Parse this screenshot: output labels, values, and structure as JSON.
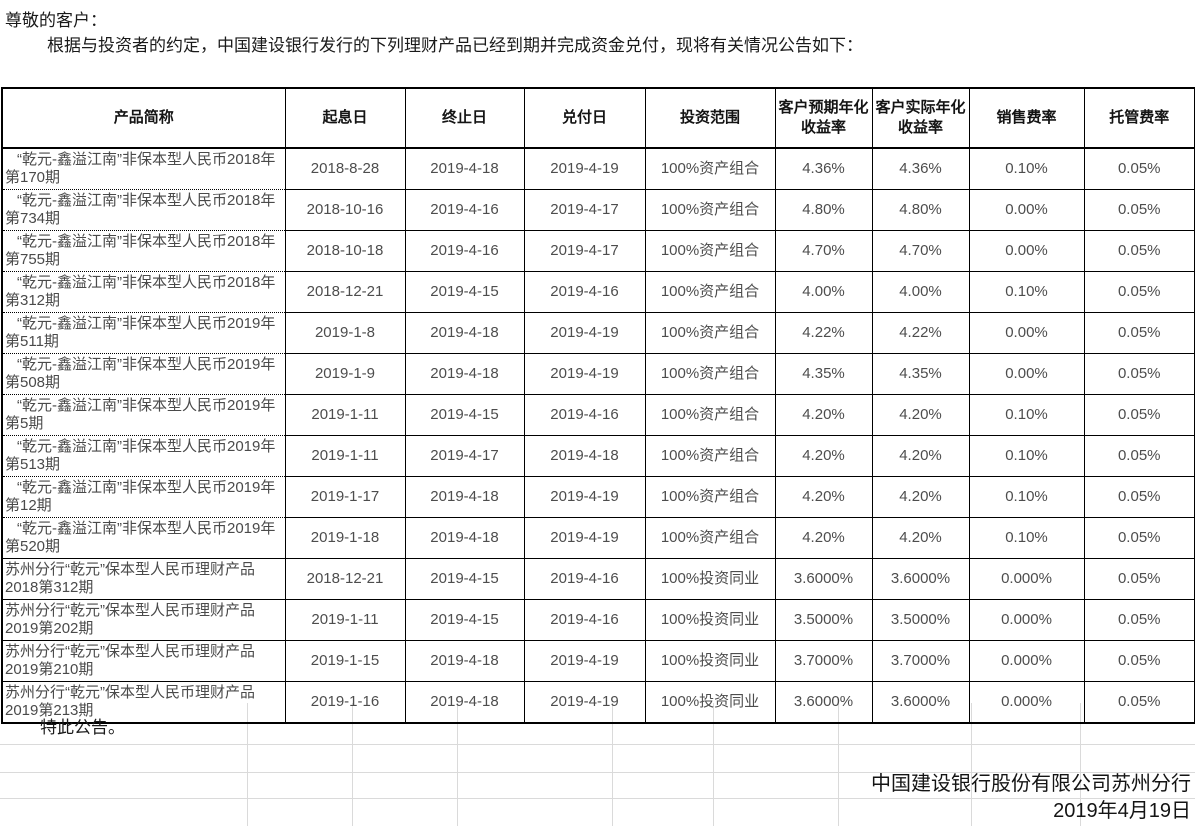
{
  "page": {
    "greeting": "尊敬的客户：",
    "intro": "根据与投资者的约定，中国建设银行发行的下列理财产品已经到期并完成资金兑付，现将有关情况公告如下：",
    "closing": "特此公告。",
    "signature": "中国建设银行股份有限公司苏州分行",
    "date": "2019年4月19日"
  },
  "table": {
    "headers": [
      "产品简称",
      "起息日",
      "终止日",
      "兑付日",
      "投资范围",
      "客户预期年化收益率",
      "客户实际年化收益率",
      "销售费率",
      "托管费率"
    ],
    "rows": [
      {
        "name": "“乾元-鑫溢江南”非保本型人民币2018年第170期",
        "value_date": "2018-8-28",
        "end_date": "2019-4-18",
        "payment_date": "2019-4-19",
        "scope": "100%资产组合",
        "expected_yield": "4.36%",
        "actual_yield": "4.36%",
        "sales_fee": "0.10%",
        "custody_fee": "0.05%"
      },
      {
        "name": "“乾元-鑫溢江南”非保本型人民币2018年第734期",
        "value_date": "2018-10-16",
        "end_date": "2019-4-16",
        "payment_date": "2019-4-17",
        "scope": "100%资产组合",
        "expected_yield": "4.80%",
        "actual_yield": "4.80%",
        "sales_fee": "0.00%",
        "custody_fee": "0.05%"
      },
      {
        "name": "“乾元-鑫溢江南”非保本型人民币2018年第755期",
        "value_date": "2018-10-18",
        "end_date": "2019-4-16",
        "payment_date": "2019-4-17",
        "scope": "100%资产组合",
        "expected_yield": "4.70%",
        "actual_yield": "4.70%",
        "sales_fee": "0.00%",
        "custody_fee": "0.05%"
      },
      {
        "name": "“乾元-鑫溢江南”非保本型人民币2018年第312期",
        "value_date": "2018-12-21",
        "end_date": "2019-4-15",
        "payment_date": "2019-4-16",
        "scope": "100%资产组合",
        "expected_yield": "4.00%",
        "actual_yield": "4.00%",
        "sales_fee": "0.10%",
        "custody_fee": "0.05%"
      },
      {
        "name": "“乾元-鑫溢江南”非保本型人民币2019年第511期",
        "value_date": "2019-1-8",
        "end_date": "2019-4-18",
        "payment_date": "2019-4-19",
        "scope": "100%资产组合",
        "expected_yield": "4.22%",
        "actual_yield": "4.22%",
        "sales_fee": "0.00%",
        "custody_fee": "0.05%"
      },
      {
        "name": "“乾元-鑫溢江南”非保本型人民币2019年第508期",
        "value_date": "2019-1-9",
        "end_date": "2019-4-18",
        "payment_date": "2019-4-19",
        "scope": "100%资产组合",
        "expected_yield": "4.35%",
        "actual_yield": "4.35%",
        "sales_fee": "0.00%",
        "custody_fee": "0.05%"
      },
      {
        "name": "“乾元-鑫溢江南”非保本型人民币2019年第5期",
        "value_date": "2019-1-11",
        "end_date": "2019-4-15",
        "payment_date": "2019-4-16",
        "scope": "100%资产组合",
        "expected_yield": "4.20%",
        "actual_yield": "4.20%",
        "sales_fee": "0.10%",
        "custody_fee": "0.05%"
      },
      {
        "name": "“乾元-鑫溢江南”非保本型人民币2019年第513期",
        "value_date": "2019-1-11",
        "end_date": "2019-4-17",
        "payment_date": "2019-4-18",
        "scope": "100%资产组合",
        "expected_yield": "4.20%",
        "actual_yield": "4.20%",
        "sales_fee": "0.10%",
        "custody_fee": "0.05%"
      },
      {
        "name": "“乾元-鑫溢江南”非保本型人民币2019年第12期",
        "value_date": "2019-1-17",
        "end_date": "2019-4-18",
        "payment_date": "2019-4-19",
        "scope": "100%资产组合",
        "expected_yield": "4.20%",
        "actual_yield": "4.20%",
        "sales_fee": "0.10%",
        "custody_fee": "0.05%"
      },
      {
        "name": "“乾元-鑫溢江南”非保本型人民币2019年第520期",
        "value_date": "2019-1-18",
        "end_date": "2019-4-18",
        "payment_date": "2019-4-19",
        "scope": "100%资产组合",
        "expected_yield": "4.20%",
        "actual_yield": "4.20%",
        "sales_fee": "0.10%",
        "custody_fee": "0.05%"
      },
      {
        "name": "苏州分行“乾元”保本型人民币理财产品2018第312期",
        "value_date": "2018-12-21",
        "end_date": "2019-4-15",
        "payment_date": "2019-4-16",
        "scope": "100%投资同业",
        "expected_yield": "3.6000%",
        "actual_yield": "3.6000%",
        "sales_fee": "0.000%",
        "custody_fee": "0.05%"
      },
      {
        "name": "苏州分行“乾元”保本型人民币理财产品2019第202期",
        "value_date": "2019-1-11",
        "end_date": "2019-4-15",
        "payment_date": "2019-4-16",
        "scope": "100%投资同业",
        "expected_yield": "3.5000%",
        "actual_yield": "3.5000%",
        "sales_fee": "0.000%",
        "custody_fee": "0.05%"
      },
      {
        "name": "苏州分行“乾元”保本型人民币理财产品2019第210期",
        "value_date": "2019-1-15",
        "end_date": "2019-4-18",
        "payment_date": "2019-4-19",
        "scope": "100%投资同业",
        "expected_yield": "3.7000%",
        "actual_yield": "3.7000%",
        "sales_fee": "0.000%",
        "custody_fee": "0.05%"
      },
      {
        "name": "苏州分行“乾元”保本型人民币理财产品2019第213期",
        "value_date": "2019-1-16",
        "end_date": "2019-4-18",
        "payment_date": "2019-4-19",
        "scope": "100%投资同业",
        "expected_yield": "3.6000%",
        "actual_yield": "3.6000%",
        "sales_fee": "0.000%",
        "custody_fee": "0.05%"
      }
    ]
  },
  "colors": {
    "background": "#ffffff",
    "table_border": "#000000",
    "faint_gridline": "#dadada",
    "heading_text": "#1a1a1a",
    "cell_text": "#4d4d4d"
  }
}
